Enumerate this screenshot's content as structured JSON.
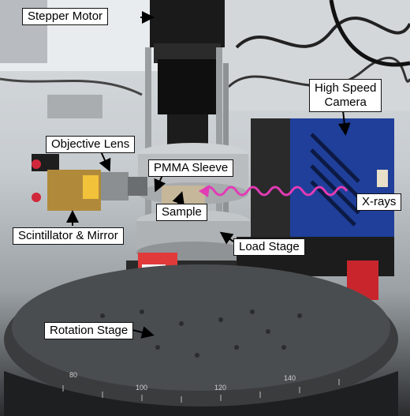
{
  "labels": {
    "stepper_motor": "Stepper Motor",
    "high_speed_camera_line1": "High Speed",
    "high_speed_camera_line2": "Camera",
    "objective_lens": "Objective Lens",
    "pmma_sleeve": "PMMA Sleeve",
    "sample": "Sample",
    "x_rays": "X-rays",
    "scintillator_mirror": "Scintillator & Mirror",
    "load_stage": "Load Stage",
    "rotation_stage": "Rotation Stage"
  },
  "scale_ticks": [
    "80",
    "100",
    "120",
    "140"
  ],
  "colors": {
    "xray_wave": "#e23bb5",
    "camera_body": "#1f3f9a",
    "label_bg": "#ffffff",
    "label_border": "#111111",
    "arrow": "#000000"
  }
}
